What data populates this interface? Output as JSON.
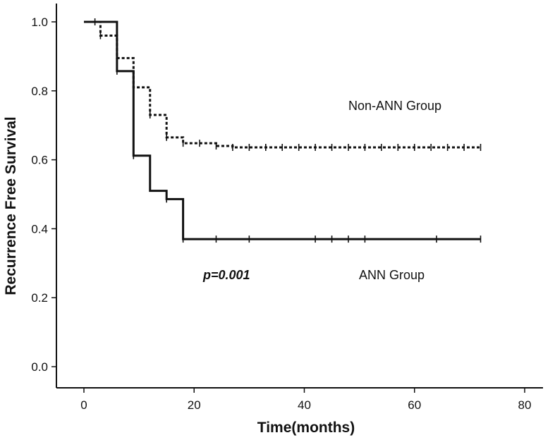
{
  "chart_data": {
    "type": "line",
    "step": true,
    "xlabel": "Time(months)",
    "ylabel": "Recurrence Free Survival",
    "xlim": [
      0,
      80
    ],
    "ylim": [
      0,
      1.0
    ],
    "x_ticks": [
      "0",
      "20",
      "40",
      "60",
      "80"
    ],
    "y_ticks": [
      "0.0",
      "0.2",
      "0.4",
      "0.6",
      "0.8",
      "1.0"
    ],
    "grid": false,
    "annotations": {
      "non_ann": "Non-ANN Group",
      "ann": "ANN Group",
      "pvalue": "p=0.001"
    },
    "series": [
      {
        "key": "non_ann",
        "style": "dotted",
        "color": "#111111",
        "steps": [
          [
            0,
            1.0
          ],
          [
            3,
            0.96
          ],
          [
            6,
            0.895
          ],
          [
            9,
            0.81
          ],
          [
            12,
            0.73
          ],
          [
            15,
            0.665
          ],
          [
            18,
            0.648
          ],
          [
            24,
            0.64
          ],
          [
            27,
            0.636
          ],
          [
            72,
            0.636
          ]
        ],
        "censored": [
          [
            2,
            1.0
          ],
          [
            3,
            0.96
          ],
          [
            6,
            0.895
          ],
          [
            9,
            0.81
          ],
          [
            12,
            0.73
          ],
          [
            15,
            0.665
          ],
          [
            18,
            0.648
          ],
          [
            21,
            0.648
          ],
          [
            24,
            0.64
          ],
          [
            27,
            0.636
          ],
          [
            30,
            0.636
          ],
          [
            33,
            0.636
          ],
          [
            36,
            0.636
          ],
          [
            39,
            0.636
          ],
          [
            42,
            0.636
          ],
          [
            45,
            0.636
          ],
          [
            48,
            0.636
          ],
          [
            51,
            0.636
          ],
          [
            54,
            0.636
          ],
          [
            57,
            0.636
          ],
          [
            60,
            0.636
          ],
          [
            63,
            0.636
          ],
          [
            66,
            0.636
          ],
          [
            69,
            0.636
          ],
          [
            72,
            0.636
          ]
        ]
      },
      {
        "key": "ann",
        "style": "solid",
        "color": "#111111",
        "steps": [
          [
            0,
            1.0
          ],
          [
            6,
            0.857
          ],
          [
            9,
            0.612
          ],
          [
            12,
            0.51
          ],
          [
            15,
            0.486
          ],
          [
            18,
            0.37
          ],
          [
            72,
            0.37
          ]
        ],
        "censored": [
          [
            6,
            0.857
          ],
          [
            9,
            0.612
          ],
          [
            15,
            0.486
          ],
          [
            18,
            0.37
          ],
          [
            24,
            0.37
          ],
          [
            30,
            0.37
          ],
          [
            42,
            0.37
          ],
          [
            45,
            0.37
          ],
          [
            48,
            0.37
          ],
          [
            51,
            0.37
          ],
          [
            64,
            0.37
          ],
          [
            72,
            0.37
          ]
        ]
      }
    ]
  }
}
